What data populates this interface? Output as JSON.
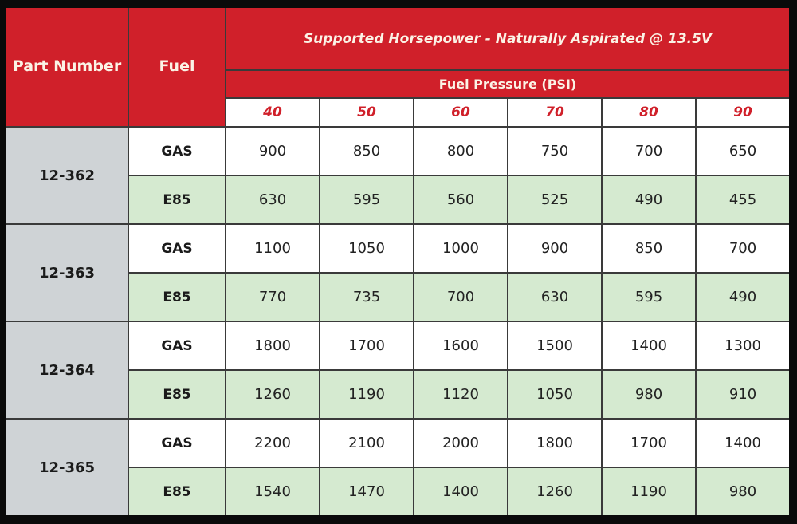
{
  "chart_data": {
    "type": "table",
    "title": "Supported Horsepower - Naturally Aspirated @ 13.5V",
    "headers": {
      "part": "Part Number",
      "fuel": "Fuel",
      "pressure_label": "Fuel Pressure (PSI)"
    },
    "pressures": [
      "40",
      "50",
      "60",
      "70",
      "80",
      "90"
    ],
    "parts": [
      {
        "part": "12-362",
        "rows": [
          {
            "fuel": "GAS",
            "values": [
              "900",
              "850",
              "800",
              "750",
              "700",
              "650"
            ]
          },
          {
            "fuel": "E85",
            "values": [
              "630",
              "595",
              "560",
              "525",
              "490",
              "455"
            ]
          }
        ]
      },
      {
        "part": "12-363",
        "rows": [
          {
            "fuel": "GAS",
            "values": [
              "1100",
              "1050",
              "1000",
              "900",
              "850",
              "700"
            ]
          },
          {
            "fuel": "E85",
            "values": [
              "770",
              "735",
              "700",
              "630",
              "595",
              "490"
            ]
          }
        ]
      },
      {
        "part": "12-364",
        "rows": [
          {
            "fuel": "GAS",
            "values": [
              "1800",
              "1700",
              "1600",
              "1500",
              "1400",
              "1300"
            ]
          },
          {
            "fuel": "E85",
            "values": [
              "1260",
              "1190",
              "1120",
              "1050",
              "980",
              "910"
            ]
          }
        ]
      },
      {
        "part": "12-365",
        "rows": [
          {
            "fuel": "GAS",
            "values": [
              "2200",
              "2100",
              "2000",
              "1800",
              "1700",
              "1400"
            ]
          },
          {
            "fuel": "E85",
            "values": [
              "1540",
              "1470",
              "1400",
              "1260",
              "1190",
              "980"
            ]
          }
        ]
      }
    ],
    "colors": {
      "header": "#d0202a",
      "part_bg": "#cfd3d6",
      "e85_bg": "#d5ead0",
      "gas_bg": "#ffffff"
    }
  }
}
